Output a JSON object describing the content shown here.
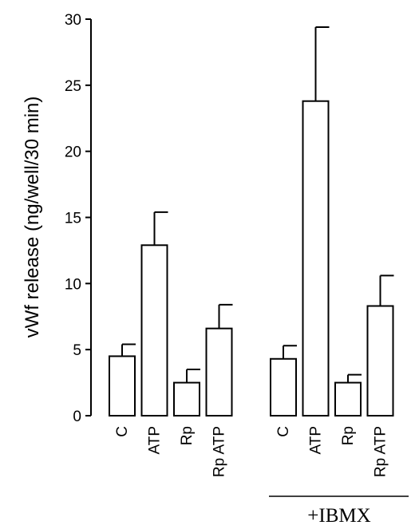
{
  "chart_data": {
    "type": "bar",
    "ylabel": "vWf release (ng/well/30 min)",
    "ylim": [
      0,
      30
    ],
    "yticks": [
      0,
      5,
      10,
      15,
      20,
      25,
      30
    ],
    "grid": false,
    "groups": [
      {
        "label": "",
        "categories": [
          "C",
          "ATP",
          "Rp",
          "Rp ATP"
        ],
        "values": [
          4.5,
          12.9,
          2.5,
          6.6
        ],
        "errors": [
          0.9,
          2.5,
          1.0,
          1.8
        ]
      },
      {
        "label": "+IBMX",
        "categories": [
          "C",
          "ATP",
          "Rp",
          "Rp ATP"
        ],
        "values": [
          4.3,
          23.8,
          2.5,
          8.3
        ],
        "errors": [
          1.0,
          5.6,
          0.6,
          2.3
        ]
      }
    ]
  }
}
